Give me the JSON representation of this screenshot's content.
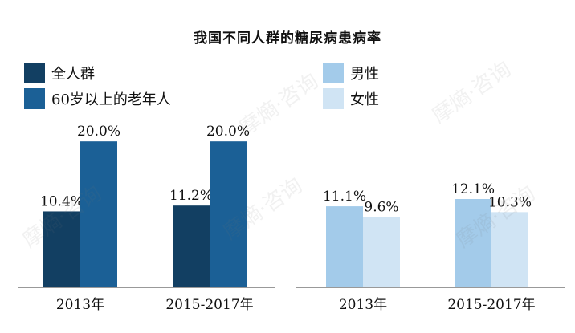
{
  "title": "我国不同人群的糖尿病患病率",
  "watermark": "摩熵·咨询",
  "chart_data": [
    {
      "type": "bar",
      "categories": [
        "2013年",
        "2015-2017年"
      ],
      "series": [
        {
          "name": "全人群",
          "values": [
            10.4,
            11.2
          ],
          "color": "#123f62"
        },
        {
          "name": "60岁以上的老年人",
          "values": [
            20.0,
            20.0
          ],
          "color": "#1b6096"
        }
      ],
      "ylim": [
        0,
        22
      ],
      "value_suffix": "%",
      "legend": "top-left"
    },
    {
      "type": "bar",
      "categories": [
        "2013年",
        "2015-2017年"
      ],
      "series": [
        {
          "name": "男性",
          "values": [
            11.1,
            12.1
          ],
          "color": "#a3cbea"
        },
        {
          "name": "女性",
          "values": [
            9.6,
            10.3
          ],
          "color": "#d0e4f4"
        }
      ],
      "ylim": [
        0,
        22
      ],
      "value_suffix": "%",
      "legend": "top-left"
    }
  ]
}
